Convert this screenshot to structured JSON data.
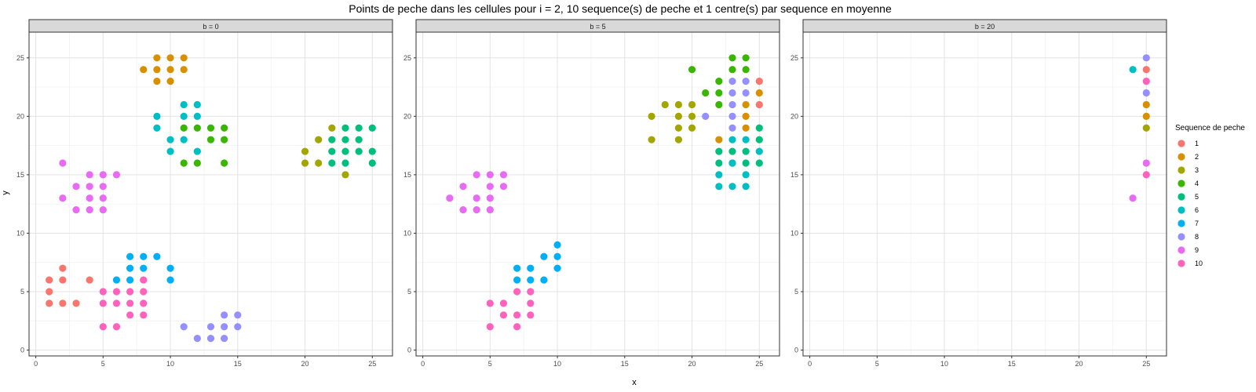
{
  "chart_data": {
    "type": "scatter",
    "title": "Points de peche dans les cellules pour i = 2, 10 sequence(s) de peche et 1 centre(s) par sequence en moyenne",
    "xlabel": "x",
    "ylabel": "y",
    "xlim": [
      -0.5,
      26.5
    ],
    "ylim": [
      -0.5,
      27.2
    ],
    "x_ticks": [
      0,
      5,
      10,
      15,
      20,
      25
    ],
    "y_ticks": [
      0,
      5,
      10,
      15,
      20,
      25
    ],
    "grid": true,
    "legend": {
      "title": "Sequence de peche",
      "placement": "right",
      "entries": [
        {
          "label": "1",
          "color": "#F8766D"
        },
        {
          "label": "2",
          "color": "#D89000"
        },
        {
          "label": "3",
          "color": "#A3A500"
        },
        {
          "label": "4",
          "color": "#39B600"
        },
        {
          "label": "5",
          "color": "#00BF7D"
        },
        {
          "label": "6",
          "color": "#00BFC4"
        },
        {
          "label": "7",
          "color": "#00B0F6"
        },
        {
          "label": "8",
          "color": "#9590FF"
        },
        {
          "label": "9",
          "color": "#E76BF3"
        },
        {
          "label": "10",
          "color": "#FF62BC"
        }
      ]
    },
    "panels": [
      {
        "strip": "b = 0",
        "series": [
          {
            "name": "1",
            "points": [
              [
                1,
                6
              ],
              [
                2,
                7
              ],
              [
                1,
                5
              ],
              [
                2,
                6
              ],
              [
                1,
                4
              ],
              [
                2,
                4
              ],
              [
                3,
                4
              ],
              [
                4,
                6
              ]
            ]
          },
          {
            "name": "2",
            "points": [
              [
                8,
                24
              ],
              [
                9,
                25
              ],
              [
                10,
                25
              ],
              [
                11,
                25
              ],
              [
                9,
                24
              ],
              [
                10,
                24
              ],
              [
                11,
                24
              ],
              [
                9,
                23
              ],
              [
                10,
                23
              ]
            ]
          },
          {
            "name": "3",
            "points": [
              [
                20,
                17
              ],
              [
                20,
                16
              ],
              [
                21,
                18
              ],
              [
                21,
                16
              ],
              [
                22,
                19
              ],
              [
                23,
                15
              ]
            ]
          },
          {
            "name": "4",
            "points": [
              [
                11,
                19
              ],
              [
                12,
                19
              ],
              [
                13,
                19
              ],
              [
                14,
                19
              ],
              [
                13,
                18
              ],
              [
                14,
                18
              ],
              [
                11,
                16
              ],
              [
                12,
                16
              ],
              [
                14,
                16
              ]
            ]
          },
          {
            "name": "5",
            "points": [
              [
                22,
                18
              ],
              [
                23,
                19
              ],
              [
                24,
                19
              ],
              [
                25,
                19
              ],
              [
                22,
                17
              ],
              [
                23,
                17
              ],
              [
                24,
                17
              ],
              [
                25,
                17
              ],
              [
                22,
                16
              ],
              [
                23,
                18
              ],
              [
                24,
                18
              ],
              [
                25,
                16
              ],
              [
                23,
                16
              ]
            ]
          },
          {
            "name": "6",
            "points": [
              [
                9,
                20
              ],
              [
                9,
                19
              ],
              [
                11,
                21
              ],
              [
                12,
                21
              ],
              [
                11,
                20
              ],
              [
                12,
                20
              ],
              [
                10,
                18
              ],
              [
                11,
                18
              ],
              [
                10,
                17
              ],
              [
                12,
                17
              ]
            ]
          },
          {
            "name": "7",
            "points": [
              [
                7,
                8
              ],
              [
                8,
                8
              ],
              [
                9,
                8
              ],
              [
                7,
                7
              ],
              [
                8,
                7
              ],
              [
                10,
                7
              ],
              [
                6,
                6
              ],
              [
                7,
                6
              ],
              [
                10,
                6
              ]
            ]
          },
          {
            "name": "8",
            "points": [
              [
                11,
                2
              ],
              [
                12,
                1
              ],
              [
                13,
                2
              ],
              [
                13,
                1
              ],
              [
                14,
                3
              ],
              [
                14,
                2
              ],
              [
                14,
                1
              ],
              [
                15,
                3
              ],
              [
                15,
                2
              ]
            ]
          },
          {
            "name": "9",
            "points": [
              [
                2,
                16
              ],
              [
                2,
                13
              ],
              [
                3,
                14
              ],
              [
                3,
                12
              ],
              [
                4,
                15
              ],
              [
                4,
                14
              ],
              [
                4,
                13
              ],
              [
                4,
                12
              ],
              [
                5,
                15
              ],
              [
                5,
                14
              ],
              [
                5,
                13
              ],
              [
                5,
                12
              ],
              [
                6,
                15
              ]
            ]
          },
          {
            "name": "10",
            "points": [
              [
                5,
                5
              ],
              [
                6,
                5
              ],
              [
                7,
                5
              ],
              [
                5,
                4
              ],
              [
                6,
                4
              ],
              [
                7,
                4
              ],
              [
                8,
                6
              ],
              [
                8,
                5
              ],
              [
                8,
                4
              ],
              [
                7,
                3
              ],
              [
                8,
                3
              ],
              [
                5,
                2
              ],
              [
                6,
                2
              ]
            ]
          }
        ]
      },
      {
        "strip": "b = 5",
        "series": [
          {
            "name": "1",
            "points": [
              [
                25,
                23
              ],
              [
                25,
                21
              ]
            ]
          },
          {
            "name": "2",
            "points": [
              [
                25,
                22
              ],
              [
                24,
                21
              ],
              [
                24,
                20
              ],
              [
                24,
                19
              ],
              [
                22,
                18
              ]
            ]
          },
          {
            "name": "3",
            "points": [
              [
                17,
                20
              ],
              [
                17,
                18
              ],
              [
                18,
                21
              ],
              [
                19,
                21
              ],
              [
                19,
                20
              ],
              [
                19,
                19
              ],
              [
                19,
                18
              ],
              [
                20,
                21
              ],
              [
                20,
                20
              ],
              [
                20,
                19
              ]
            ]
          },
          {
            "name": "4",
            "points": [
              [
                20,
                24
              ],
              [
                21,
                22
              ],
              [
                22,
                23
              ],
              [
                22,
                22
              ],
              [
                23,
                25
              ],
              [
                23,
                24
              ],
              [
                24,
                25
              ],
              [
                24,
                24
              ],
              [
                22,
                21
              ]
            ]
          },
          {
            "name": "5",
            "points": [
              [
                22,
                17
              ],
              [
                22,
                16
              ],
              [
                23,
                17
              ],
              [
                23,
                16
              ],
              [
                24,
                17
              ],
              [
                24,
                16
              ],
              [
                25,
                19
              ],
              [
                25,
                18
              ],
              [
                25,
                16
              ]
            ]
          },
          {
            "name": "6",
            "points": [
              [
                22,
                15
              ],
              [
                22,
                14
              ],
              [
                23,
                18
              ],
              [
                23,
                14
              ],
              [
                24,
                18
              ],
              [
                24,
                15
              ],
              [
                24,
                14
              ],
              [
                25,
                17
              ],
              [
                23,
                16
              ]
            ]
          },
          {
            "name": "7",
            "points": [
              [
                7,
                7
              ],
              [
                8,
                7
              ],
              [
                7,
                6
              ],
              [
                8,
                6
              ],
              [
                9,
                8
              ],
              [
                9,
                6
              ],
              [
                10,
                9
              ],
              [
                10,
                8
              ],
              [
                10,
                7
              ]
            ]
          },
          {
            "name": "8",
            "points": [
              [
                21,
                20
              ],
              [
                23,
                23
              ],
              [
                24,
                23
              ],
              [
                23,
                22
              ],
              [
                24,
                22
              ],
              [
                23,
                21
              ],
              [
                23,
                20
              ],
              [
                23,
                19
              ]
            ]
          },
          {
            "name": "9",
            "points": [
              [
                2,
                13
              ],
              [
                3,
                14
              ],
              [
                3,
                12
              ],
              [
                4,
                15
              ],
              [
                4,
                13
              ],
              [
                4,
                12
              ],
              [
                5,
                15
              ],
              [
                5,
                14
              ],
              [
                5,
                13
              ],
              [
                5,
                12
              ],
              [
                6,
                15
              ],
              [
                6,
                14
              ]
            ]
          },
          {
            "name": "10",
            "points": [
              [
                7,
                5
              ],
              [
                8,
                5
              ],
              [
                5,
                4
              ],
              [
                6,
                4
              ],
              [
                8,
                4
              ],
              [
                6,
                3
              ],
              [
                7,
                3
              ],
              [
                8,
                3
              ],
              [
                5,
                2
              ],
              [
                7,
                2
              ]
            ]
          }
        ]
      },
      {
        "strip": "b = 20",
        "series": [
          {
            "name": "1",
            "points": [
              [
                25,
                24
              ]
            ]
          },
          {
            "name": "2",
            "points": [
              [
                25,
                21
              ],
              [
                25,
                20
              ]
            ]
          },
          {
            "name": "3",
            "points": [
              [
                25,
                19
              ]
            ]
          },
          {
            "name": "6",
            "points": [
              [
                24,
                24
              ]
            ]
          },
          {
            "name": "8",
            "points": [
              [
                25,
                25
              ],
              [
                25,
                22
              ]
            ]
          },
          {
            "name": "9",
            "points": [
              [
                25,
                16
              ],
              [
                24,
                13
              ]
            ]
          },
          {
            "name": "10",
            "points": [
              [
                25,
                23
              ],
              [
                25,
                15
              ]
            ]
          }
        ]
      }
    ]
  }
}
